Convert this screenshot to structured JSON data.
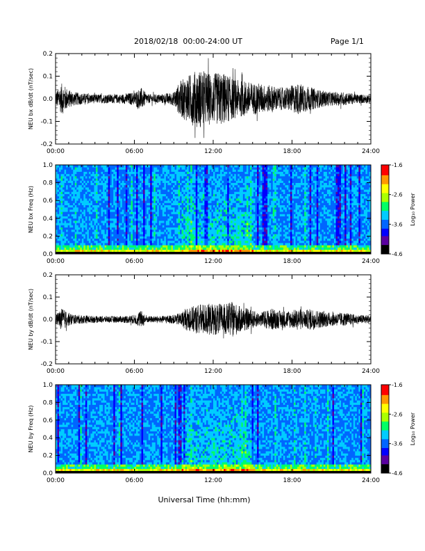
{
  "header": {
    "title": "2018/02/18  00:00-24:00 UT",
    "page": "Page 1/1"
  },
  "chart_data": [
    {
      "type": "line",
      "ylabel": "NEU bx dB/dt (nT/sec)",
      "x_ticks": [
        "00:00",
        "06:00",
        "12:00",
        "18:00",
        "24:00"
      ],
      "y_ticks": [
        "-0.2",
        "-0.1",
        "0.0",
        "0.1",
        "0.2"
      ],
      "xlim": [
        0,
        24
      ],
      "ylim": [
        -0.2,
        0.2
      ],
      "envelope": {
        "x": [
          0,
          0.5,
          1,
          1.5,
          2,
          3,
          4,
          5,
          6,
          6.5,
          7,
          8,
          9,
          9.5,
          10,
          10.5,
          11,
          11.5,
          12,
          12.5,
          13,
          13.5,
          14,
          14.5,
          15,
          15.5,
          16,
          16.5,
          17,
          17.5,
          18,
          18.5,
          19,
          19.5,
          20,
          21,
          22,
          23,
          24
        ],
        "amp": [
          0.03,
          0.07,
          0.04,
          0.03,
          0.025,
          0.02,
          0.02,
          0.02,
          0.03,
          0.05,
          0.02,
          0.02,
          0.03,
          0.08,
          0.1,
          0.12,
          0.13,
          0.12,
          0.11,
          0.12,
          0.11,
          0.09,
          0.08,
          0.08,
          0.07,
          0.07,
          0.06,
          0.06,
          0.05,
          0.05,
          0.06,
          0.07,
          0.06,
          0.05,
          0.04,
          0.03,
          0.03,
          0.02,
          0.02
        ]
      }
    },
    {
      "type": "heatmap",
      "ylabel": "NEU bx Freq (Hz)",
      "x_ticks": [
        "00:00",
        "06:00",
        "12:00",
        "18:00",
        "24:00"
      ],
      "y_ticks": [
        "0.0",
        "0.2",
        "0.4",
        "0.6",
        "0.8",
        "1.0"
      ],
      "xlim": [
        0,
        24
      ],
      "ylim": [
        0,
        1.0
      ],
      "colorbar": {
        "label": "Log₁₀ Power",
        "ticks": [
          "-1.6",
          "-2.6",
          "-3.6",
          "-4.6"
        ],
        "range": [
          -4.6,
          -1.6
        ]
      },
      "colormap": [
        "#000000",
        "#5a00a0",
        "#0000ff",
        "#0066ff",
        "#00ccff",
        "#00ff66",
        "#aaff00",
        "#ffff00",
        "#ff9900",
        "#ff0000"
      ]
    },
    {
      "type": "line",
      "ylabel": "NEU by dB/dt (nT/sec)",
      "x_ticks": [
        "00:00",
        "06:00",
        "12:00",
        "18:00",
        "24:00"
      ],
      "y_ticks": [
        "-0.2",
        "-0.1",
        "0.0",
        "0.1",
        "0.2"
      ],
      "xlim": [
        0,
        24
      ],
      "ylim": [
        -0.2,
        0.2
      ],
      "envelope": {
        "x": [
          0,
          0.5,
          1,
          1.5,
          2,
          3,
          4,
          5,
          6,
          6.5,
          7,
          8,
          9,
          9.5,
          10,
          10.5,
          11,
          11.5,
          12,
          12.5,
          13,
          13.5,
          14,
          14.5,
          15,
          15.5,
          16,
          16.5,
          17,
          17.5,
          18,
          18.5,
          19,
          19.5,
          20,
          21,
          22,
          23,
          24
        ],
        "amp": [
          0.02,
          0.05,
          0.03,
          0.02,
          0.02,
          0.015,
          0.015,
          0.015,
          0.02,
          0.04,
          0.015,
          0.015,
          0.02,
          0.03,
          0.05,
          0.06,
          0.07,
          0.07,
          0.07,
          0.07,
          0.07,
          0.08,
          0.06,
          0.05,
          0.04,
          0.03,
          0.04,
          0.05,
          0.04,
          0.04,
          0.04,
          0.05,
          0.04,
          0.05,
          0.04,
          0.03,
          0.03,
          0.02,
          0.02
        ]
      }
    },
    {
      "type": "heatmap",
      "ylabel": "NEU by Freq (Hz)",
      "x_ticks": [
        "00:00",
        "06:00",
        "12:00",
        "18:00",
        "24:00"
      ],
      "y_ticks": [
        "0.0",
        "0.2",
        "0.4",
        "0.6",
        "0.8",
        "1.0"
      ],
      "xlim": [
        0,
        24
      ],
      "ylim": [
        0,
        1.0
      ],
      "colorbar": {
        "label": "Log₁₀ Power",
        "ticks": [
          "-1.6",
          "-2.6",
          "-3.6",
          "-4.6"
        ],
        "range": [
          -4.6,
          -1.6
        ]
      },
      "colormap": [
        "#000000",
        "#5a00a0",
        "#0000ff",
        "#0066ff",
        "#00ccff",
        "#00ff66",
        "#aaff00",
        "#ffff00",
        "#ff9900",
        "#ff0000"
      ]
    }
  ],
  "xaxis_label": "Universal Time (hh:mm)"
}
